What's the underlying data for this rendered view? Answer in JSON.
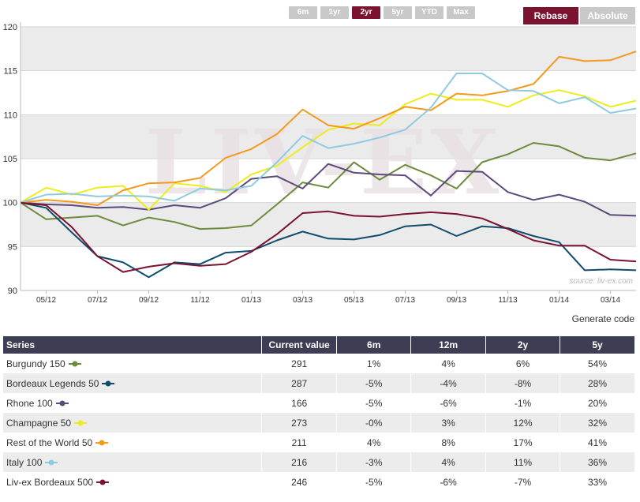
{
  "range_buttons": [
    "6m",
    "1yr",
    "2yr",
    "5yr",
    "YTD",
    "Max"
  ],
  "active_range": "2yr",
  "mode_buttons": {
    "rebase": "Rebase",
    "absolute": "Absolute"
  },
  "generate_code": "Generate code",
  "watermark": {
    "text": "LIV-EX",
    "source": "source: liv-ex.com"
  },
  "table": {
    "headers": [
      "Series",
      "Current value",
      "6m",
      "12m",
      "2y",
      "5y"
    ],
    "rows": [
      {
        "name": "Burgundy 150",
        "color": "#6e8b3d",
        "current": "291",
        "m6": "1%",
        "m12": "4%",
        "y2": "6%",
        "y5": "54%"
      },
      {
        "name": "Bordeaux Legends 50",
        "color": "#0f4c6e",
        "current": "287",
        "m6": "-5%",
        "m12": "-4%",
        "y2": "-8%",
        "y5": "28%"
      },
      {
        "name": "Rhone 100",
        "color": "#5c4a7d",
        "current": "166",
        "m6": "-5%",
        "m12": "-6%",
        "y2": "-1%",
        "y5": "20%"
      },
      {
        "name": "Champagne 50",
        "color": "#eded1c",
        "current": "273",
        "m6": "-0%",
        "m12": "3%",
        "y2": "12%",
        "y5": "32%"
      },
      {
        "name": "Rest of the World 50",
        "color": "#f39a1d",
        "current": "211",
        "m6": "4%",
        "m12": "8%",
        "y2": "17%",
        "y5": "41%"
      },
      {
        "name": "Italy 100",
        "color": "#8fcbe0",
        "current": "216",
        "m6": "-3%",
        "m12": "4%",
        "y2": "11%",
        "y5": "36%"
      },
      {
        "name": "Liv-ex Bordeaux 500",
        "color": "#7a1230",
        "current": "246",
        "m6": "-5%",
        "m12": "-6%",
        "y2": "-7%",
        "y5": "33%"
      }
    ]
  },
  "chart_data": {
    "type": "line",
    "x": [
      "2012-04",
      "2012-05",
      "2012-06",
      "2012-07",
      "2012-08",
      "2012-09",
      "2012-10",
      "2012-11",
      "2012-12",
      "2013-01",
      "2013-02",
      "2013-03",
      "2013-04",
      "2013-05",
      "2013-06",
      "2013-07",
      "2013-08",
      "2013-09",
      "2013-10",
      "2013-11",
      "2013-12",
      "2014-01",
      "2014-02",
      "2014-03",
      "2014-04"
    ],
    "xticks": [
      "05/12",
      "07/12",
      "09/12",
      "11/12",
      "01/13",
      "03/13",
      "05/13",
      "07/13",
      "09/13",
      "11/13",
      "01/14",
      "03/14"
    ],
    "ylim": [
      90,
      120
    ],
    "yticks": [
      90,
      95,
      100,
      105,
      110,
      115,
      120
    ],
    "grid": true,
    "series": [
      {
        "name": "Burgundy 150",
        "color": "#6e8b3d",
        "values": [
          100,
          98.1,
          98.3,
          98.5,
          97.4,
          98.3,
          97.8,
          97.0,
          97.1,
          97.4,
          99.8,
          102.3,
          101.7,
          104.6,
          102.6,
          104.3,
          103.1,
          101.6,
          104.6,
          105.5,
          106.8,
          106.4,
          105.1,
          104.8,
          105.6
        ]
      },
      {
        "name": "Bordeaux Legends 50",
        "color": "#0f4c6e",
        "values": [
          100,
          99.4,
          96.6,
          93.9,
          93.2,
          91.5,
          93.2,
          93.0,
          94.3,
          94.5,
          95.7,
          96.7,
          95.9,
          95.8,
          96.3,
          97.3,
          97.5,
          96.2,
          97.3,
          97.1,
          96.2,
          95.5,
          92.3,
          92.4,
          92.3
        ]
      },
      {
        "name": "Rhone 100",
        "color": "#5c4a7d",
        "values": [
          100,
          99.8,
          99.7,
          99.4,
          99.5,
          99.2,
          99.7,
          99.4,
          100.5,
          102.7,
          103.0,
          101.6,
          104.4,
          103.4,
          103.2,
          103.1,
          100.8,
          103.6,
          103.5,
          101.2,
          100.3,
          100.9,
          100.1,
          98.6,
          98.5
        ]
      },
      {
        "name": "Champagne 50",
        "color": "#eded1c",
        "values": [
          100,
          101.7,
          100.9,
          101.7,
          101.9,
          99.2,
          102.2,
          101.9,
          101.2,
          103.2,
          104.2,
          106.3,
          108.3,
          109.0,
          108.8,
          111.2,
          112.4,
          111.7,
          111.7,
          110.9,
          112.2,
          112.8,
          112.1,
          110.9,
          111.6
        ]
      },
      {
        "name": "Rest of the World 50",
        "color": "#f39a1d",
        "values": [
          100,
          100.3,
          100.1,
          99.7,
          101.4,
          102.2,
          102.3,
          102.8,
          105.1,
          106.1,
          107.8,
          110.6,
          108.8,
          108.4,
          109.6,
          110.9,
          110.5,
          112.4,
          112.2,
          112.7,
          113.5,
          116.6,
          116.1,
          116.2,
          117.2
        ]
      },
      {
        "name": "Italy 100",
        "color": "#8fcbe0",
        "values": [
          100,
          100.9,
          101.0,
          100.7,
          100.8,
          100.7,
          100.2,
          101.6,
          101.4,
          101.9,
          104.6,
          107.6,
          106.2,
          106.7,
          107.4,
          108.3,
          110.8,
          114.7,
          114.7,
          112.8,
          112.7,
          111.3,
          112.0,
          110.2,
          110.7
        ]
      },
      {
        "name": "Liv-ex Bordeaux 500",
        "color": "#7a1230",
        "values": [
          100,
          99.7,
          97.2,
          93.9,
          92.1,
          92.7,
          93.1,
          92.8,
          93.0,
          94.4,
          96.4,
          98.8,
          99.0,
          98.5,
          98.4,
          98.7,
          98.9,
          98.7,
          98.2,
          97.0,
          95.7,
          95.1,
          95.1,
          93.5,
          93.3
        ]
      }
    ]
  }
}
